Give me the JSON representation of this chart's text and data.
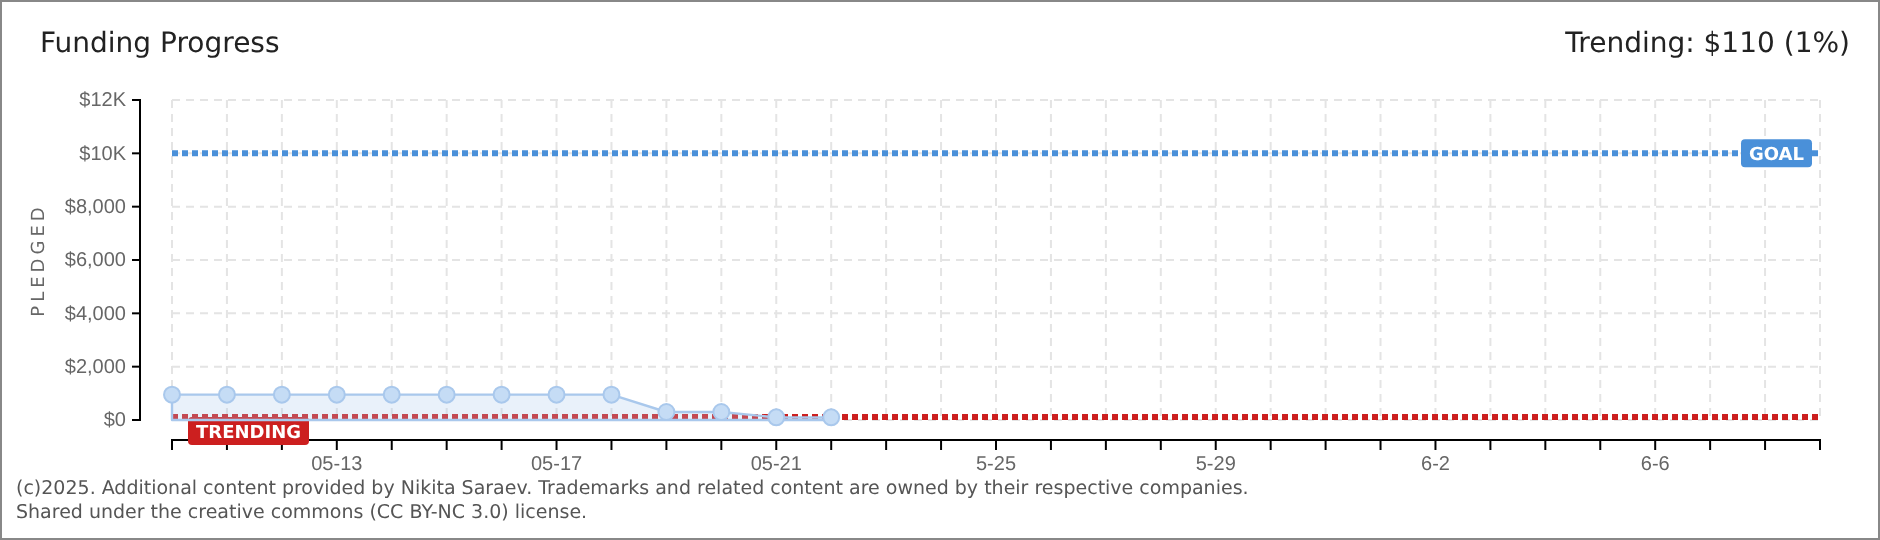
{
  "chart_data": {
    "type": "area",
    "title": "Funding Progress",
    "subtitle": "Trending: $110 (1%)",
    "ylabel": "PLEDGED",
    "x": [
      "2025-05-10",
      "2025-05-11",
      "2025-05-12",
      "2025-05-13",
      "2025-05-14",
      "2025-05-15",
      "2025-05-16",
      "2025-05-17",
      "2025-05-18",
      "2025-05-19",
      "2025-05-20",
      "2025-05-21",
      "2025-05-22"
    ],
    "series": [
      {
        "color": "#a9c8ec",
        "values": [
          950,
          950,
          950,
          950,
          950,
          950,
          950,
          950,
          950,
          300,
          300,
          100,
          100
        ]
      }
    ],
    "marker": "circle",
    "grid": true,
    "xlim": [
      "2025-05-10",
      "2025-06-09"
    ],
    "xticks": [
      {
        "value": "2025-05-10",
        "label": null
      },
      {
        "value": "2025-05-11",
        "label": null
      },
      {
        "value": "2025-05-12",
        "label": null
      },
      {
        "value": "2025-05-13",
        "label": "05-13"
      },
      {
        "value": "2025-05-14",
        "label": null
      },
      {
        "value": "2025-05-15",
        "label": null
      },
      {
        "value": "2025-05-16",
        "label": null
      },
      {
        "value": "2025-05-17",
        "label": "05-17"
      },
      {
        "value": "2025-05-18",
        "label": null
      },
      {
        "value": "2025-05-19",
        "label": null
      },
      {
        "value": "2025-05-20",
        "label": null
      },
      {
        "value": "2025-05-21",
        "label": "05-21"
      },
      {
        "value": "2025-05-22",
        "label": null
      },
      {
        "value": "2025-05-23",
        "label": null
      },
      {
        "value": "2025-05-24",
        "label": null
      },
      {
        "value": "2025-05-25",
        "label": "5-25"
      },
      {
        "value": "2025-05-26",
        "label": null
      },
      {
        "value": "2025-05-27",
        "label": null
      },
      {
        "value": "2025-05-28",
        "label": null
      },
      {
        "value": "2025-05-29",
        "label": "5-29"
      },
      {
        "value": "2025-05-30",
        "label": null
      },
      {
        "value": "2025-05-31",
        "label": null
      },
      {
        "value": "2025-06-01",
        "label": null
      },
      {
        "value": "2025-06-02",
        "label": "6-2"
      },
      {
        "value": "2025-06-03",
        "label": null
      },
      {
        "value": "2025-06-04",
        "label": null
      },
      {
        "value": "2025-06-05",
        "label": null
      },
      {
        "value": "2025-06-06",
        "label": "6-6"
      },
      {
        "value": "2025-06-07",
        "label": null
      },
      {
        "value": "2025-06-08",
        "label": null
      },
      {
        "value": "2025-06-09",
        "label": null
      }
    ],
    "ylim": [
      0,
      12000
    ],
    "yticks": [
      {
        "value": 0,
        "label": "$0"
      },
      {
        "value": 2000,
        "label": "$2,000"
      },
      {
        "value": 4000,
        "label": "$4,000"
      },
      {
        "value": 6000,
        "label": "$6,000"
      },
      {
        "value": 8000,
        "label": "$8,000"
      },
      {
        "value": 10000,
        "label": "$10K"
      },
      {
        "value": 12000,
        "label": "$12K"
      }
    ],
    "ref_lines": [
      {
        "axis": "y",
        "value": 10000,
        "label": "GOAL",
        "color": "#4a90d9",
        "line_style": "dotted"
      },
      {
        "axis": "y",
        "value": 110,
        "label": "TRENDING",
        "color": "#cc1f1f",
        "line_style": "dotted"
      }
    ],
    "annotations": [
      "(c)2025. Additional content provided by Nikita Saraev. Trademarks and related content are owned by their respective companies.",
      "Shared under the creative commons (CC BY-NC 3.0) license."
    ]
  }
}
